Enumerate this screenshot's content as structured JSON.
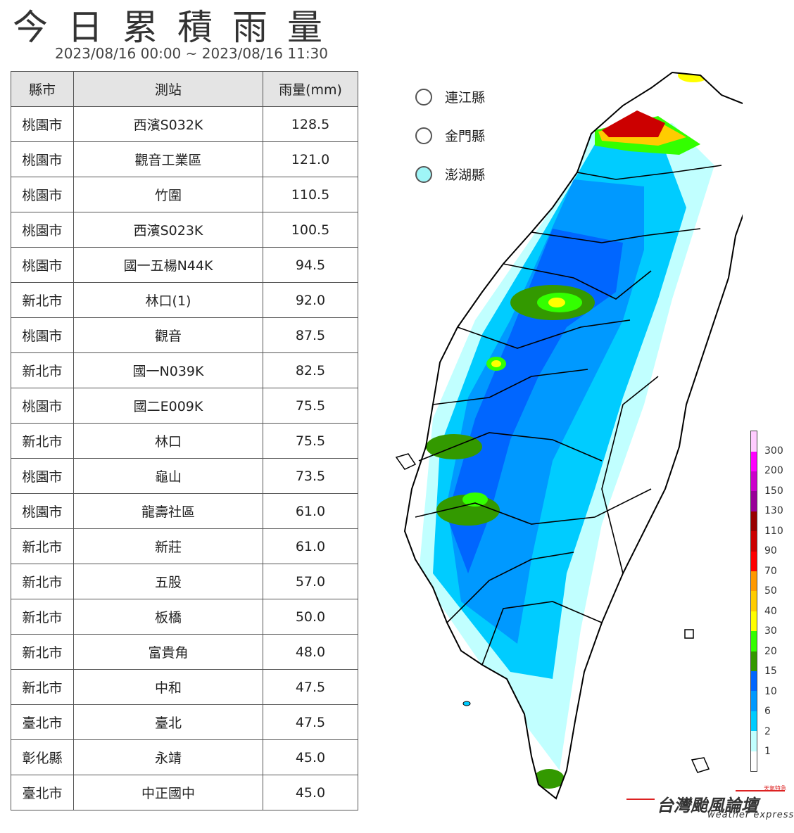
{
  "title": "今日累積雨量",
  "period": "2023/08/16 00:00 ~ 2023/08/16 11:30",
  "table": {
    "headers": [
      "縣市",
      "測站",
      "雨量(mm)"
    ],
    "rows": [
      [
        "桃園市",
        "西濱S032K",
        "128.5"
      ],
      [
        "桃園市",
        "觀音工業區",
        "121.0"
      ],
      [
        "桃園市",
        "竹圍",
        "110.5"
      ],
      [
        "桃園市",
        "西濱S023K",
        "100.5"
      ],
      [
        "桃園市",
        "國一五楊N44K",
        "94.5"
      ],
      [
        "新北市",
        "林口(1)",
        "92.0"
      ],
      [
        "桃園市",
        "觀音",
        "87.5"
      ],
      [
        "新北市",
        "國一N039K",
        "82.5"
      ],
      [
        "桃園市",
        "國二E009K",
        "75.5"
      ],
      [
        "新北市",
        "林口",
        "75.5"
      ],
      [
        "桃園市",
        "龜山",
        "73.5"
      ],
      [
        "桃園市",
        "龍壽社區",
        "61.0"
      ],
      [
        "新北市",
        "新莊",
        "61.0"
      ],
      [
        "新北市",
        "五股",
        "57.0"
      ],
      [
        "新北市",
        "板橋",
        "50.0"
      ],
      [
        "新北市",
        "富貴角",
        "48.0"
      ],
      [
        "新北市",
        "中和",
        "47.5"
      ],
      [
        "臺北市",
        "臺北",
        "47.5"
      ],
      [
        "彰化縣",
        "永靖",
        "45.0"
      ],
      [
        "臺北市",
        "中正國中",
        "45.0"
      ]
    ]
  },
  "islands": [
    {
      "name": "連江縣",
      "color": "#ffffff"
    },
    {
      "name": "金門縣",
      "color": "#ffffff"
    },
    {
      "name": "澎湖縣",
      "color": "#9ff5f7"
    }
  ],
  "legend": {
    "labels": [
      "1",
      "2",
      "6",
      "10",
      "15",
      "20",
      "30",
      "40",
      "50",
      "70",
      "90",
      "110",
      "130",
      "150",
      "200",
      "300"
    ],
    "colors": [
      "#ffffff",
      "#c1ffff",
      "#00ccff",
      "#0099ff",
      "#0066ff",
      "#339900",
      "#33ff00",
      "#ffff00",
      "#ffcc00",
      "#ff9900",
      "#ff0000",
      "#cc0000",
      "#990000",
      "#990099",
      "#cc00cc",
      "#ff00ff",
      "#ffccff"
    ]
  },
  "brand": {
    "name": "台灣颱風論壇",
    "sub": "weather express",
    "tag": "天氣特急"
  }
}
